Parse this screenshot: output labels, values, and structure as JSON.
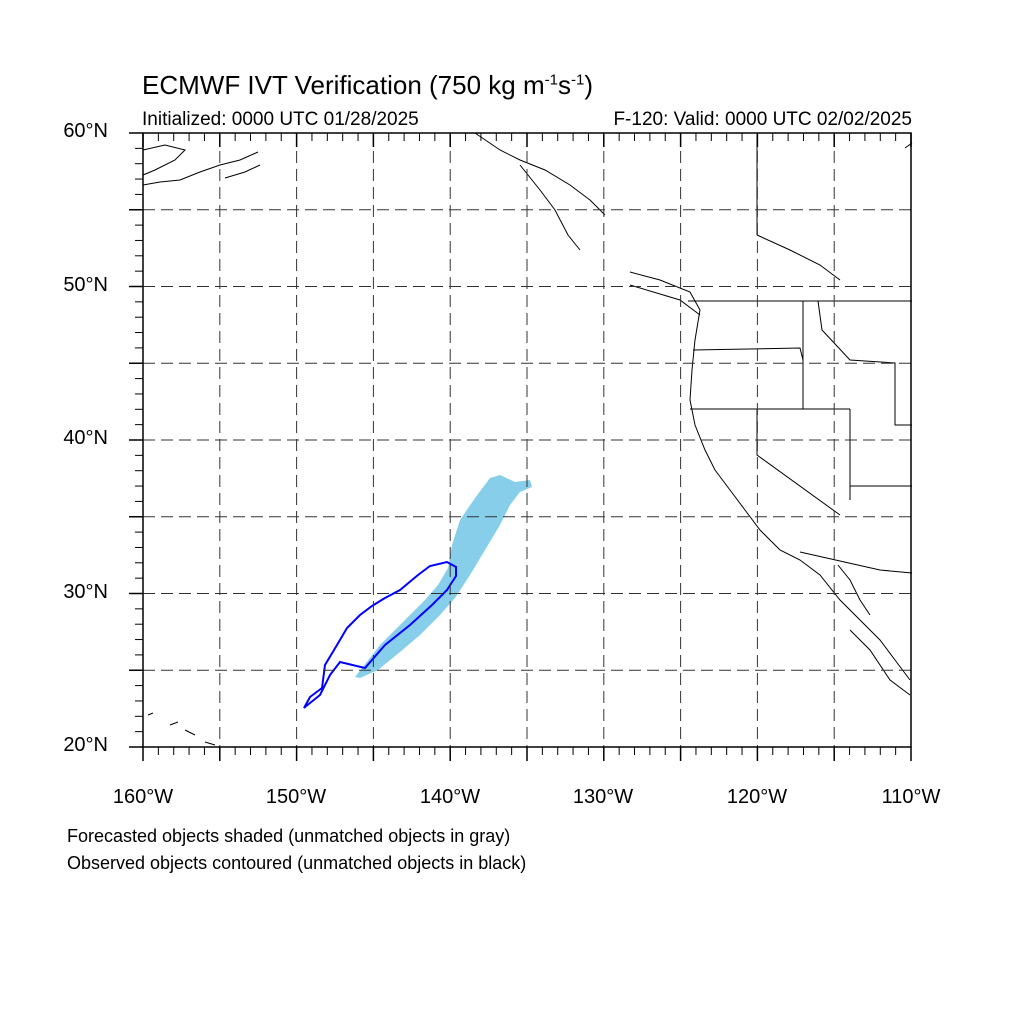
{
  "header": {
    "title_prefix": "ECMWF IVT Verification (750 kg m",
    "title_exp1": "-1",
    "title_mid": "s",
    "title_exp2": "-1",
    "title_suffix": ")",
    "initialized": "Initialized: 0000 UTC 01/28/2025",
    "valid": "F-120: Valid: 0000 UTC 02/02/2025"
  },
  "map": {
    "lon_range": [
      -160,
      -110
    ],
    "lat_range": [
      20,
      60
    ],
    "lat_ticks": [
      "20°N",
      "30°N",
      "40°N",
      "50°N",
      "60°N"
    ],
    "lon_ticks": [
      "160°W",
      "150°W",
      "140°W",
      "130°W",
      "120°W",
      "110°W"
    ],
    "grid_spacing_deg": 5,
    "forecast_color": "#87CEEB",
    "observed_color": "#0000FF"
  },
  "legend": {
    "line1": "Forecasted objects shaded (unmatched objects in gray)",
    "line2": "Observed objects contoured (unmatched objects in black)"
  }
}
